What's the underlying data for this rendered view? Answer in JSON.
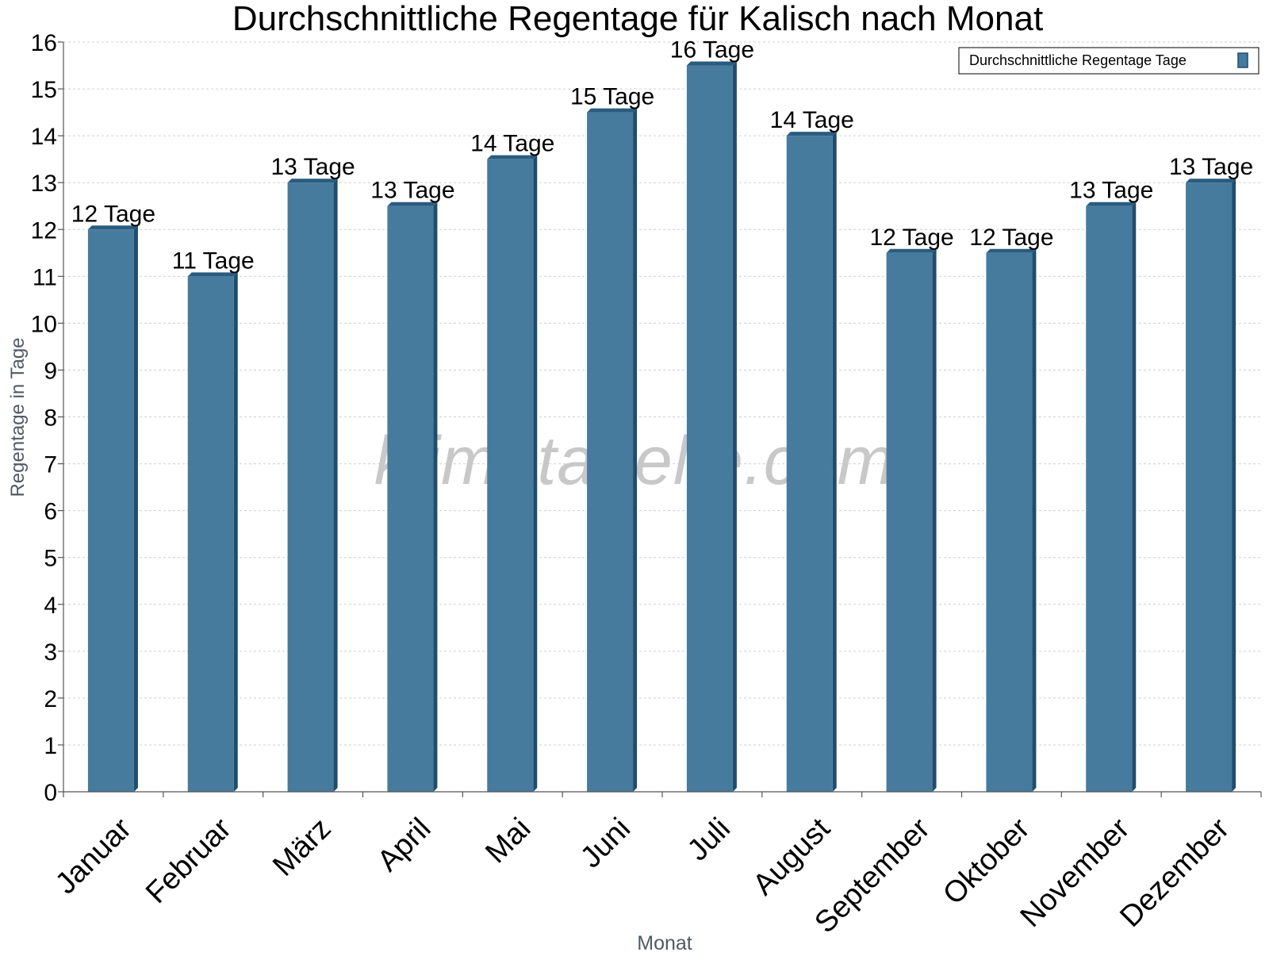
{
  "chart_data": {
    "type": "bar",
    "title": "Durchschnittliche Regentage für Kalisch nach Monat",
    "xlabel": "Monat",
    "ylabel": "Regentage in Tage",
    "categories": [
      "Januar",
      "Februar",
      "März",
      "April",
      "Mai",
      "Juni",
      "Juli",
      "August",
      "September",
      "Oktober",
      "November",
      "Dezember"
    ],
    "series": [
      {
        "name": "Durchschnittliche Regentage Tage",
        "values": [
          12,
          11,
          13,
          12.5,
          13.5,
          14.5,
          15.5,
          14,
          11.5,
          11.5,
          12.5,
          13
        ],
        "labels": [
          "12 Tage",
          "11 Tage",
          "13 Tage",
          "13 Tage",
          "14 Tage",
          "15 Tage",
          "16 Tage",
          "14 Tage",
          "12 Tage",
          "12 Tage",
          "13 Tage",
          "13 Tage"
        ]
      }
    ],
    "ylim": [
      0,
      16
    ],
    "yticks": [
      "0",
      "1",
      "2",
      "3",
      "4",
      "5",
      "6",
      "7",
      "8",
      "9",
      "10",
      "11",
      "12",
      "13",
      "14",
      "15",
      "16"
    ],
    "grid": true,
    "legend_position": "top-right",
    "watermark": "klimatabelle.com",
    "colors": {
      "bar_front": "#467b9d",
      "bar_side": "#1e4d6e",
      "bar_top": "#2a5c80",
      "grid": "#cfcfcf",
      "axis": "#555555",
      "axis_label": "#505a64",
      "watermark": "#c8c8c8"
    }
  }
}
